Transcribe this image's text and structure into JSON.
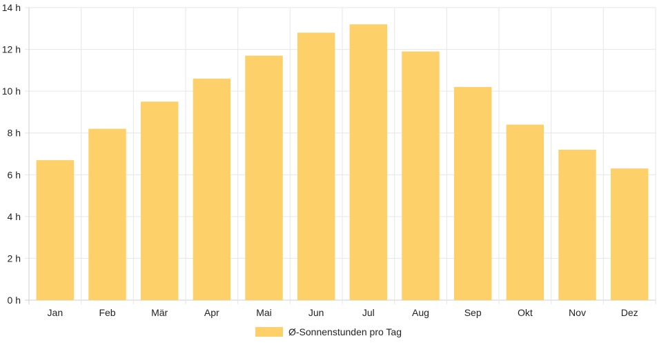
{
  "chart_data": {
    "type": "bar",
    "categories": [
      "Jan",
      "Feb",
      "Mär",
      "Apr",
      "Mai",
      "Jun",
      "Jul",
      "Aug",
      "Sep",
      "Okt",
      "Nov",
      "Dez"
    ],
    "series": [
      {
        "name": "Ø-Sonnenstunden pro Tag",
        "values": [
          6.7,
          8.2,
          9.5,
          10.6,
          11.7,
          12.8,
          13.2,
          11.9,
          10.2,
          8.4,
          7.2,
          6.3
        ]
      }
    ],
    "y_ticks": [
      "0 h",
      "2 h",
      "4 h",
      "6 h",
      "8 h",
      "10 h",
      "12 h",
      "14 h"
    ],
    "ylim": [
      0,
      14
    ],
    "grid": true,
    "legend_position": "bottom",
    "colors": {
      "bar": "#fdd069",
      "grid": "#e6e6e6",
      "axis": "#cfcfcf"
    }
  }
}
